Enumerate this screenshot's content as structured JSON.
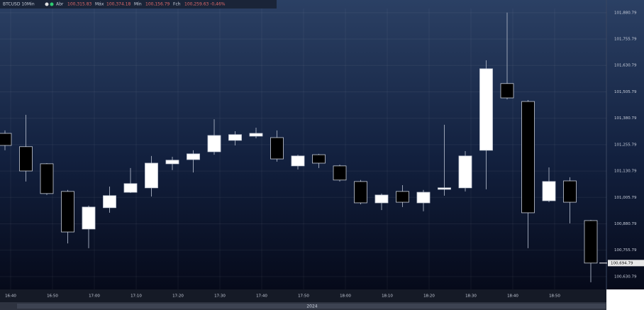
{
  "chart_data": {
    "type": "candlestick",
    "header": {
      "symbol": "BTCUSD 10Min",
      "fields": [
        {
          "name": "Abr",
          "value": "100,315.83"
        },
        {
          "name": "Máx",
          "value": "100,374.18"
        },
        {
          "name": "Mín",
          "value": "100,156.79"
        },
        {
          "name": "Fch",
          "value": "100,259.63 -0,46%"
        }
      ]
    },
    "categories": [
      "16:40",
      null,
      "16:50",
      null,
      "17:00",
      null,
      "17:10",
      null,
      "17:20",
      null,
      "17:30",
      null,
      "17:40",
      null,
      "17:50",
      null,
      "18:00",
      null,
      "18:10",
      null,
      "18:20",
      null,
      "18:30",
      null,
      "18:40",
      null,
      "18:50",
      null,
      null
    ],
    "open": [
      101309,
      101246,
      101165,
      101034,
      100856,
      100957,
      101030,
      101051,
      101165,
      101185,
      101222,
      101276,
      101296,
      101289,
      101155,
      101208,
      101155,
      101081,
      100980,
      101034,
      100980,
      101044,
      101051,
      101229,
      101545,
      101460,
      100990,
      101084,
      100896
    ],
    "high": [
      101323,
      101397,
      101168,
      101041,
      100967,
      101057,
      101145,
      101202,
      101198,
      101229,
      101376,
      101319,
      101336,
      101323,
      101208,
      101212,
      101161,
      101088,
      101024,
      101064,
      101041,
      101350,
      101225,
      101655,
      101881,
      101467,
      101148,
      101101,
      100899
    ],
    "low": [
      101229,
      101081,
      101017,
      100788,
      100765,
      100933,
      101027,
      101010,
      101135,
      101124,
      101208,
      101252,
      101286,
      101175,
      101138,
      101145,
      101081,
      100973,
      100946,
      100960,
      100940,
      101014,
      101034,
      101044,
      101470,
      100765,
      100983,
      100883,
      100604
    ],
    "close": [
      101252,
      101131,
      101024,
      100842,
      100960,
      101014,
      101071,
      101168,
      101182,
      101212,
      101299,
      101303,
      101309,
      101188,
      101202,
      101168,
      101088,
      100980,
      101017,
      100983,
      101030,
      101051,
      101202,
      101615,
      101477,
      100933,
      101081,
      100983,
      100694.79
    ],
    "up_color": "#ffffff",
    "down_color": "#000000",
    "wick_color": "#9aa3b5",
    "ylim": [
      100580,
      101934
    ],
    "yticks": [
      {
        "value": 101880.79,
        "label": "101,880.79"
      },
      {
        "value": 101755.79,
        "label": "101,755.79"
      },
      {
        "value": 101630.79,
        "label": "101,630.79"
      },
      {
        "value": 101505.79,
        "label": "101,505.79"
      },
      {
        "value": 101380.79,
        "label": "101,380.79"
      },
      {
        "value": 101255.79,
        "label": "101,255.79"
      },
      {
        "value": 101130.79,
        "label": "101,130.79"
      },
      {
        "value": 101005.79,
        "label": "101,005.79"
      },
      {
        "value": 100880.79,
        "label": "100,880.79"
      },
      {
        "value": 100755.79,
        "label": "100,755.79"
      },
      {
        "value": 100630.79,
        "label": "100,630.79"
      }
    ],
    "last_price": {
      "value": 100694.79,
      "label": "100,694.79"
    },
    "footer": "2024",
    "grid": true
  }
}
